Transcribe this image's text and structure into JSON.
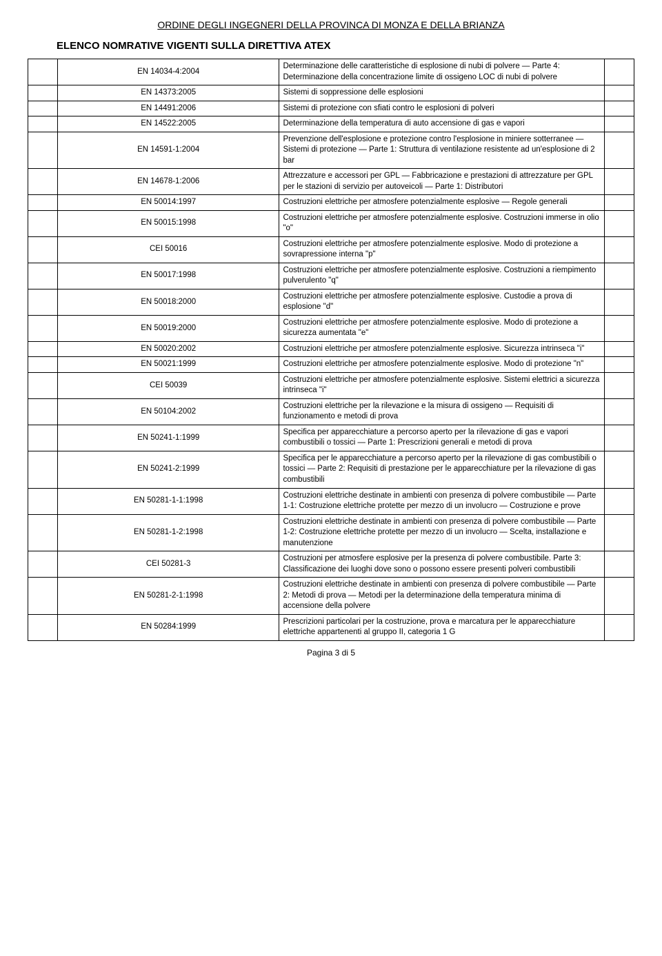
{
  "header": {
    "org": "ORDINE DEGLI INGEGNERI DELLA PROVINCA DI MONZA E DELLA BRIANZA",
    "title": "ELENCO NOMRATIVE VIGENTI SULLA DIRETTIVA ATEX"
  },
  "rows": [
    {
      "code": "EN 14034-4:2004",
      "desc": "Determinazione delle caratteristiche di esplosione di nubi di polvere — Parte 4: Determinazione della concentrazione limite di ossigeno LOC di nubi di polvere"
    },
    {
      "code": "EN 14373:2005",
      "desc": "Sistemi di soppressione delle esplosioni"
    },
    {
      "code": "EN 14491:2006",
      "desc": "Sistemi di protezione con sfiati contro le esplosioni di polveri"
    },
    {
      "code": "EN 14522:2005",
      "desc": "Determinazione della temperatura di auto accensione di gas e vapori"
    },
    {
      "code": "EN 14591-1:2004",
      "desc": "Prevenzione dell'esplosione e protezione contro l'esplosione in miniere sotterranee — Sistemi di protezione — Parte 1: Struttura di ventilazione resistente ad un'esplosione di 2 bar"
    },
    {
      "code": "EN 14678-1:2006",
      "desc": "Attrezzature e accessori per GPL — Fabbricazione e prestazioni di attrezzature per GPL per le stazioni di servizio per autoveicoli — Parte 1: Distributori"
    },
    {
      "code": "EN 50014:1997",
      "desc": "Costruzioni elettriche per atmosfere potenzialmente esplosive — Regole generali"
    },
    {
      "code": "EN 50015:1998",
      "desc": "Costruzioni elettriche per atmosfere potenzialmente esplosive. Costruzioni immerse in olio \"o\""
    },
    {
      "code": "CEI 50016",
      "desc": "Costruzioni elettriche per atmosfere potenzialmente esplosive. Modo di protezione a sovrapressione interna \"p\""
    },
    {
      "code": "EN 50017:1998",
      "desc": "Costruzioni elettriche per atmosfere potenzialmente esplosive. Costruzioni a riempimento pulverulento \"q\""
    },
    {
      "code": "EN 50018:2000",
      "desc": "Costruzioni elettriche per atmosfere potenzialmente esplosive. Custodie a prova di esplosione \"d\""
    },
    {
      "code": "EN 50019:2000",
      "desc": "Costruzioni elettriche per atmosfere potenzialmente esplosive. Modo di protezione a sicurezza aumentata \"e\""
    },
    {
      "code": "EN 50020:2002",
      "desc": "Costruzioni elettriche per atmosfere potenzialmente esplosive. Sicurezza intrinseca \"i\""
    },
    {
      "code": "EN 50021:1999",
      "desc": "Costruzioni elettriche per atmosfere potenzialmente esplosive. Modo di protezione \"n\""
    },
    {
      "code": "CEI 50039",
      "desc": "Costruzioni elettriche per atmosfere potenzialmente esplosive. Sistemi elettrici a sicurezza intrinseca \"i\""
    },
    {
      "code": "EN 50104:2002",
      "desc": "Costruzioni elettriche per la rilevazione e la misura di ossigeno — Requisiti di funzionamento e metodi di prova"
    },
    {
      "code": "EN 50241-1:1999",
      "desc": "Specifica per apparecchiature a percorso aperto per la rilevazione di gas e vapori combustibili o tossici — Parte 1: Prescrizioni generali e metodi di prova"
    },
    {
      "code": "EN 50241-2:1999",
      "desc": "Specifica per le apparecchiature a percorso aperto per la rilevazione di gas combustibili o tossici — Parte 2: Requisiti di prestazione per le apparecchiature per la rilevazione di gas combustibili"
    },
    {
      "code": "EN 50281-1-1:1998",
      "desc": "Costruzioni elettriche destinate in ambienti con presenza di polvere combustibile — Parte 1-1: Costruzione elettriche protette per mezzo di un involucro — Costruzione e prove"
    },
    {
      "code": "EN 50281-1-2:1998",
      "desc": "Costruzioni elettriche destinate in ambienti con presenza di polvere combustibile — Parte 1-2: Costruzione elettriche protette per mezzo di un involucro — Scelta, installazione e manutenzione"
    },
    {
      "code": "CEI 50281-3",
      "desc": "Costruzioni per atmosfere esplosive per la presenza di polvere combustibile. Parte 3: Classificazione dei luoghi dove sono o possono essere presenti polveri combustibili"
    },
    {
      "code": "EN 50281-2-1:1998",
      "desc": "Costruzioni elettriche destinate in ambienti con presenza di polvere combustibile — Parte 2: Metodi di prova — Metodi per la determinazione della temperatura minima di accensione della polvere"
    },
    {
      "code": "EN 50284:1999",
      "desc": "Prescrizioni particolari per la costruzione, prova e marcatura per le apparecchiature elettriche appartenenti al gruppo II, categoria 1 G"
    }
  ],
  "footer": "Pagina 3 di 5"
}
